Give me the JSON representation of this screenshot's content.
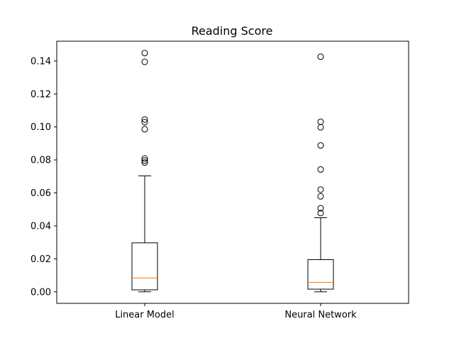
{
  "chart_data": {
    "type": "boxplot",
    "title": "Reading Score",
    "xlabel": "",
    "ylabel": "",
    "ylim": [
      -0.007,
      0.152
    ],
    "yticks": [
      0.0,
      0.02,
      0.04,
      0.06,
      0.08,
      0.1,
      0.12,
      0.14
    ],
    "ytick_labels": [
      "0.00",
      "0.02",
      "0.04",
      "0.06",
      "0.08",
      "0.10",
      "0.12",
      "0.14"
    ],
    "grid": false,
    "categories": [
      "Linear Model",
      "Neural Network"
    ],
    "boxes": [
      {
        "label": "Linear Model",
        "whisker_low": 0.0,
        "q1": 0.0012,
        "median": 0.0084,
        "q3": 0.0297,
        "whisker_high": 0.0703,
        "outliers": [
          0.0784,
          0.0796,
          0.0809,
          0.0986,
          0.1029,
          0.1045,
          0.1395,
          0.1448
        ]
      },
      {
        "label": "Neural Network",
        "whisker_low": 0.0,
        "q1": 0.0016,
        "median": 0.0057,
        "q3": 0.0195,
        "whisker_high": 0.0449,
        "outliers": [
          0.0478,
          0.0507,
          0.0579,
          0.062,
          0.0742,
          0.0888,
          0.0998,
          0.1031,
          0.1426
        ]
      }
    ],
    "colors": {
      "box": "#000000",
      "median": "#ff7f0e",
      "outlier": "#000000"
    }
  }
}
